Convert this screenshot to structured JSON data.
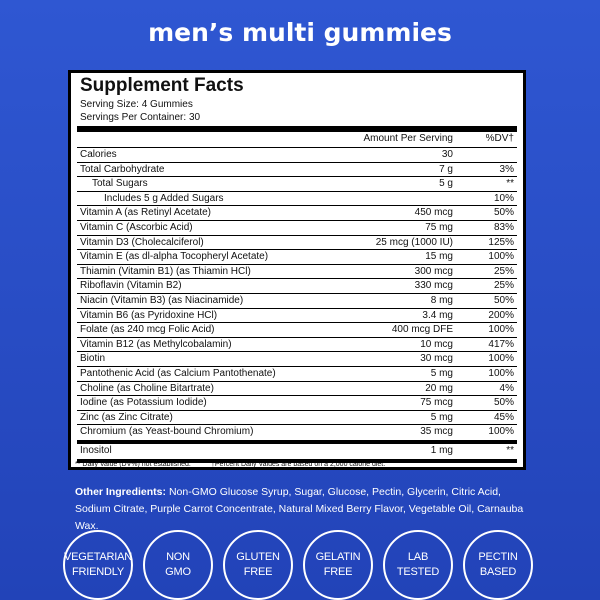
{
  "header": {
    "title": "men’s multi gummies"
  },
  "panel": {
    "title": "Supplement Facts",
    "serving_size": "Serving Size: 4 Gummies",
    "servings_per_container": "Servings Per Container: 30",
    "columns": {
      "amount": "Amount Per Serving",
      "dv": "%DV†"
    },
    "rows": [
      {
        "name": "Calories",
        "amount": "30",
        "dv": null
      },
      {
        "name": "Total Carbohydrate",
        "amount": "7 g",
        "dv": "3%",
        "sub": [
          {
            "name": "Total Sugars",
            "amount": "5 g",
            "dv": "**",
            "sub": [
              {
                "name": "Includes 5 g Added Sugars",
                "amount": null,
                "dv": "10%"
              }
            ]
          }
        ]
      },
      {
        "name": "Vitamin A (as Retinyl Acetate)",
        "amount": "450 mcg",
        "dv": "50%"
      },
      {
        "name": "Vitamin C (Ascorbic Acid)",
        "amount": "75 mg",
        "dv": "83%"
      },
      {
        "name": "Vitamin D3 (Cholecalciferol)",
        "amount": "25 mcg (1000 IU)",
        "dv": "125%"
      },
      {
        "name": "Vitamin E (as dl-alpha Tocopheryl Acetate)",
        "amount": "15 mg",
        "dv": "100%"
      },
      {
        "name": "Thiamin (Vitamin B1) (as Thiamin HCl)",
        "amount": "300 mcg",
        "dv": "25%"
      },
      {
        "name": "Riboflavin (Vitamin B2)",
        "amount": "330 mcg",
        "dv": "25%"
      },
      {
        "name": "Niacin (Vitamin B3) (as Niacinamide)",
        "amount": "8 mg",
        "dv": "50%"
      },
      {
        "name": "Vitamin B6 (as Pyridoxine HCl)",
        "amount": "3.4 mg",
        "dv": "200%"
      },
      {
        "name": "Folate (as 240 mcg Folic Acid)",
        "amount": "400 mcg DFE",
        "dv": "100%"
      },
      {
        "name": "Vitamin B12 (as Methylcobalamin)",
        "amount": "10 mcg",
        "dv": "417%"
      },
      {
        "name": "Biotin",
        "amount": "30 mcg",
        "dv": "100%"
      },
      {
        "name": "Pantothenic Acid (as Calcium Pantothenate)",
        "amount": "5 mg",
        "dv": "100%"
      },
      {
        "name": "Choline (as Choline Bitartrate)",
        "amount": "20 mg",
        "dv": "4%"
      },
      {
        "name": "Iodine (as Potassium Iodide)",
        "amount": "75 mcg",
        "dv": "50%"
      },
      {
        "name": "Zinc (as Zinc Citrate)",
        "amount": "5 mg",
        "dv": "45%"
      },
      {
        "name": "Chromium (as Yeast-bound Chromium)",
        "amount": "35 mcg",
        "dv": "100%"
      }
    ],
    "last_rows": [
      {
        "name": "Inositol",
        "amount": "1 mg",
        "dv": "**"
      }
    ],
    "footnotes": [
      "** Daily Value (DV%) not established.",
      "†Percent Daily Values are based on a 2,000 calorie diet."
    ]
  },
  "ingredients": {
    "label": "Other Ingredients:",
    "text": "Non-GMO Glucose Syrup, Sugar, Glucose, Pectin, Glycerin, Citric Acid, Sodium Citrate, Purple Carrot Concentrate, Natural Mixed Berry Flavor, Vegetable Oil, Carnauba Wax."
  },
  "badges": [
    [
      "VEGETARIAN",
      "FRIENDLY"
    ],
    [
      "NON",
      "GMO"
    ],
    [
      "GLUTEN",
      "FREE"
    ],
    [
      "GELATIN",
      "FREE"
    ],
    [
      "LAB",
      "TESTED"
    ],
    [
      "PECTIN",
      "BASED"
    ]
  ]
}
